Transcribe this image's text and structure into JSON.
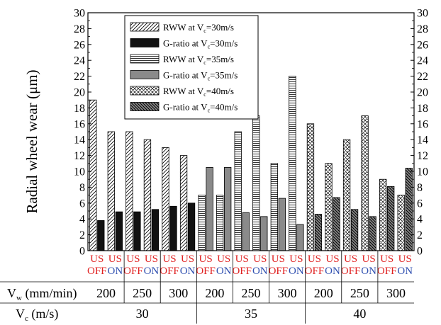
{
  "chart_data": {
    "type": "bar",
    "ylabel": "Radial wheel wear (μm)",
    "ylim": [
      0,
      30
    ],
    "yticks": [
      0,
      2,
      4,
      6,
      8,
      10,
      12,
      14,
      16,
      18,
      20,
      22,
      24,
      26,
      28,
      30
    ],
    "y2ticks": [
      0,
      2,
      4,
      6,
      8,
      10,
      12,
      14,
      16,
      18,
      20,
      22,
      24,
      26,
      28,
      30
    ],
    "categories": [
      {
        "vc": 30,
        "vw": 200,
        "us": "OFF",
        "rww": 19,
        "gratio": 3.8
      },
      {
        "vc": 30,
        "vw": 200,
        "us": "ON",
        "rww": 15,
        "gratio": 4.9
      },
      {
        "vc": 30,
        "vw": 250,
        "us": "OFF",
        "rww": 15,
        "gratio": 4.9
      },
      {
        "vc": 30,
        "vw": 250,
        "us": "ON",
        "rww": 14,
        "gratio": 5.2
      },
      {
        "vc": 30,
        "vw": 300,
        "us": "OFF",
        "rww": 13,
        "gratio": 5.6
      },
      {
        "vc": 30,
        "vw": 300,
        "us": "ON",
        "rww": 12,
        "gratio": 6.0
      },
      {
        "vc": 35,
        "vw": 200,
        "us": "OFF",
        "rww": 7,
        "gratio": 10.5
      },
      {
        "vc": 35,
        "vw": 200,
        "us": "ON",
        "rww": 7,
        "gratio": 10.5
      },
      {
        "vc": 35,
        "vw": 250,
        "us": "OFF",
        "rww": 15,
        "gratio": 4.8
      },
      {
        "vc": 35,
        "vw": 250,
        "us": "ON",
        "rww": 17,
        "gratio": 4.3
      },
      {
        "vc": 35,
        "vw": 300,
        "us": "OFF",
        "rww": 11,
        "gratio": 6.6
      },
      {
        "vc": 35,
        "vw": 300,
        "us": "ON",
        "rww": 22,
        "gratio": 3.3
      },
      {
        "vc": 40,
        "vw": 200,
        "us": "OFF",
        "rww": 16,
        "gratio": 4.6
      },
      {
        "vc": 40,
        "vw": 200,
        "us": "ON",
        "rww": 11,
        "gratio": 6.7
      },
      {
        "vc": 40,
        "vw": 250,
        "us": "OFF",
        "rww": 14,
        "gratio": 5.2
      },
      {
        "vc": 40,
        "vw": 250,
        "us": "ON",
        "rww": 17,
        "gratio": 4.3
      },
      {
        "vc": 40,
        "vw": 300,
        "us": "OFF",
        "rww": 9,
        "gratio": 8.1
      },
      {
        "vc": 40,
        "vw": 300,
        "us": "ON",
        "rww": 7,
        "gratio": 10.4
      }
    ],
    "us_labels": {
      "top": "US",
      "off": "OFF",
      "on": "ON"
    },
    "us_label_colors": {
      "top": "#e02020",
      "off": "#e02020",
      "on": "#3050b0"
    },
    "vw_row_label": {
      "main": "V",
      "sub": "w",
      "rest": " (mm/min)"
    },
    "vw_values": [
      "200",
      "250",
      "300",
      "200",
      "250",
      "300",
      "200",
      "250",
      "300"
    ],
    "vc_row_label": {
      "main": "V",
      "sub": "c",
      "rest": " (m/s)"
    },
    "vc_values": [
      "30",
      "35",
      "40"
    ],
    "legend": [
      {
        "label_main": "RWW at V",
        "label_sub": "c",
        "label_rest": "=30m/s",
        "pattern": "diag"
      },
      {
        "label_main": "G-ratio at V",
        "label_sub": "c",
        "label_rest": "=30m/s",
        "pattern": "black"
      },
      {
        "label_main": "RWW at V",
        "label_sub": "c",
        "label_rest": "=35m/s",
        "pattern": "horiz"
      },
      {
        "label_main": "G-ratio at V",
        "label_sub": "c",
        "label_rest": "=35m/s",
        "pattern": "grey"
      },
      {
        "label_main": "RWW at V",
        "label_sub": "c",
        "label_rest": "=40m/s",
        "pattern": "cross"
      },
      {
        "label_main": "G-ratio at V",
        "label_sub": "c",
        "label_rest": "=40m/s",
        "pattern": "backdiag"
      }
    ],
    "legend_position": "top-center",
    "grid": false
  }
}
